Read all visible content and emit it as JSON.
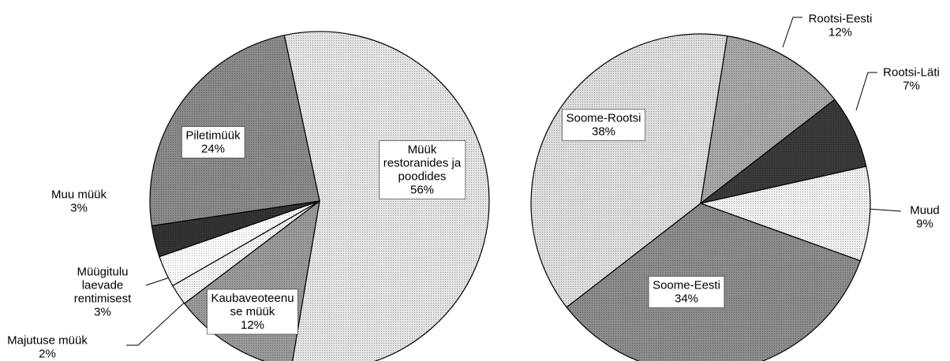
{
  "chart_data": [
    {
      "type": "pie",
      "categories": [
        [
          "Müük",
          "restoranides ja",
          "poodides"
        ],
        [
          "Kaubaveoteenu",
          "se müük"
        ],
        [
          "Majutuse  müük"
        ],
        [
          "Müügitulu",
          "laevade",
          "rentimisest"
        ],
        [
          "Muu müük"
        ],
        [
          "Piletimüük"
        ]
      ],
      "values": [
        56,
        12,
        2,
        3,
        3,
        24
      ],
      "value_labels": [
        "56%",
        "12%",
        "2%",
        "3%",
        "3%",
        "24%"
      ],
      "colors": [
        "#e4e4e4",
        "#9a9a9a",
        "#f4f4f4",
        "#ffffff",
        "#333333",
        "#8a8a8a"
      ]
    },
    {
      "type": "pie",
      "categories": [
        [
          "Rootsi-Eesti"
        ],
        [
          "Rootsi-Läti"
        ],
        [
          "Muud"
        ],
        [
          "Soome-Eesti"
        ],
        [
          "Soome-Rootsi"
        ]
      ],
      "values": [
        12,
        7,
        9,
        34,
        38
      ],
      "value_labels": [
        "12%",
        "7%",
        "9%",
        "34%",
        "38%"
      ],
      "colors": [
        "#a8a8a8",
        "#3a3a3a",
        "#f0f0f0",
        "#8c8c8c",
        "#dedede"
      ]
    }
  ]
}
